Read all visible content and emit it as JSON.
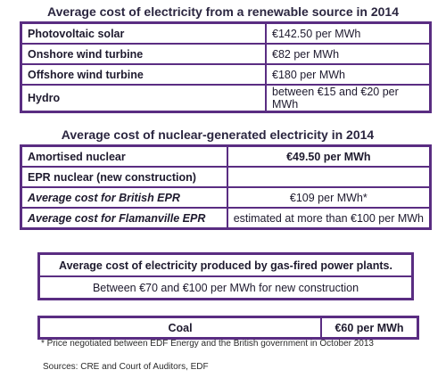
{
  "renewable": {
    "title": "Average cost of electricity from a renewable source in 2014",
    "rows": [
      {
        "label": "Photovoltaic solar",
        "value": "€142.50 per MWh"
      },
      {
        "label": "Onshore wind turbine",
        "value": "€82 per MWh"
      },
      {
        "label": "Offshore wind turbine",
        "value": "€180 per MWh"
      },
      {
        "label": "Hydro",
        "value": "between €15 and €20 per MWh"
      }
    ]
  },
  "nuclear": {
    "title": "Average cost of nuclear-generated electricity in 2014",
    "rows": [
      {
        "label": "Amortised nuclear",
        "value": "€49.50 per MWh"
      },
      {
        "label": "EPR nuclear (new construction)",
        "value": ""
      },
      {
        "label": "Average cost for British EPR",
        "value": "€109 per MWh*"
      },
      {
        "label": "Average cost for Flamanville EPR",
        "value": "estimated at more than €100 per MWh"
      }
    ]
  },
  "gas": {
    "title": "Average cost of electricity produced by gas-fired power plants.",
    "value": "Between €70 and €100 per MWh for new construction"
  },
  "coal": {
    "label": "Coal",
    "value": "€60 per MWh"
  },
  "footnote": "* Price negotiated between EDF Energy and the British government in October 2013",
  "sources": "Sources: CRE and Court of Auditors, EDF",
  "colors": {
    "border": "#5a2d82",
    "text": "#1e1a2e"
  }
}
